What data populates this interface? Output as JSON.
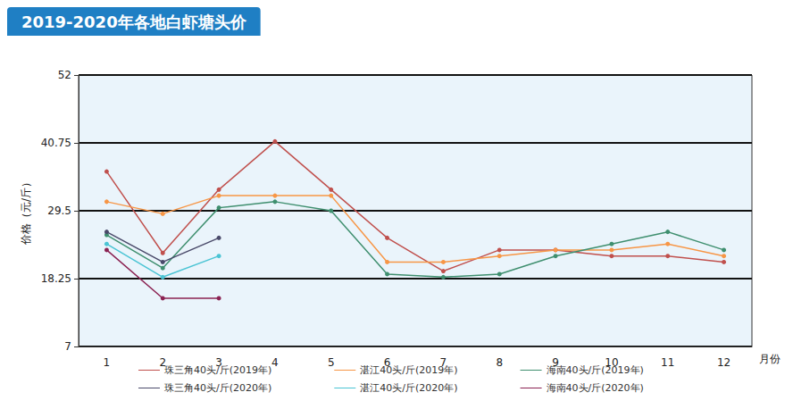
{
  "chart_data": {
    "type": "line",
    "title": "2019-2020年各地白虾塘头价",
    "y_label": "价格（元/斤）",
    "x_label": "月份",
    "categories": [
      "1",
      "2",
      "3",
      "4",
      "5",
      "6",
      "7",
      "8",
      "9",
      "10",
      "11",
      "12"
    ],
    "ylim": [
      7,
      52
    ],
    "yticks": [
      7,
      18.25,
      29.5,
      40.75,
      52
    ],
    "grid": true,
    "legend": "bottom",
    "marker": "circle",
    "series": [
      {
        "name": "珠三角40头/斤(2019年)",
        "color": "#c0504d",
        "values": [
          36,
          22.5,
          33,
          41,
          33,
          25,
          19.5,
          23,
          23,
          22,
          22,
          21
        ]
      },
      {
        "name": "湛江40头/斤(2019年)",
        "color": "#f79646",
        "values": [
          31,
          29,
          32,
          32,
          32,
          21,
          21,
          22,
          23,
          23,
          24,
          22
        ]
      },
      {
        "name": "海南40头/斤(2019年)",
        "color": "#3f8f6f",
        "values": [
          25.5,
          20,
          30,
          31,
          29.5,
          19,
          18.5,
          19,
          22,
          24,
          26,
          23
        ]
      },
      {
        "name": "珠三角40头/斤(2020年)",
        "color": "#4a4a6a",
        "values": [
          26,
          21,
          25,
          null,
          null,
          null,
          null,
          null,
          null,
          null,
          null,
          null
        ]
      },
      {
        "name": "湛江40头/斤(2020年)",
        "color": "#4bc4d4",
        "values": [
          24,
          18.5,
          22,
          null,
          null,
          null,
          null,
          null,
          null,
          null,
          null,
          null
        ]
      },
      {
        "name": "海南40头/斤(2020年)",
        "color": "#8b2252",
        "values": [
          23,
          15,
          15,
          null,
          null,
          null,
          null,
          null,
          null,
          null,
          null,
          null
        ]
      }
    ]
  }
}
